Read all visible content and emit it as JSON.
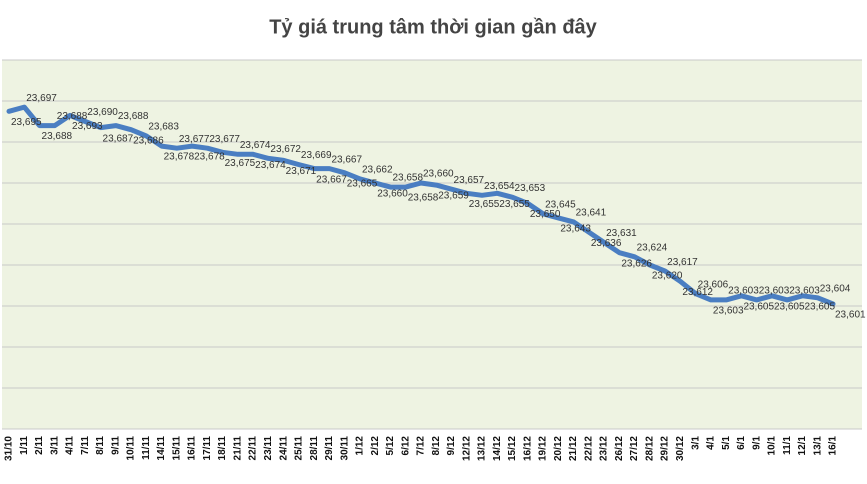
{
  "chart_data": {
    "type": "line",
    "title": "Tỷ giá trung tâm thời gian gần đây",
    "categories": [
      "31/10",
      "1/11",
      "2/11",
      "3/11",
      "4/11",
      "7/11",
      "8/11",
      "9/11",
      "10/11",
      "11/11",
      "14/11",
      "15/11",
      "16/11",
      "17/11",
      "18/11",
      "21/11",
      "22/11",
      "23/11",
      "24/11",
      "25/11",
      "28/11",
      "29/11",
      "30/11",
      "1/12",
      "2/12",
      "5/12",
      "6/12",
      "7/12",
      "8/12",
      "9/12",
      "12/12",
      "13/12",
      "14/12",
      "15/12",
      "16/12",
      "19/12",
      "20/12",
      "21/12",
      "22/12",
      "23/12",
      "26/12",
      "27/12",
      "28/12",
      "29/12",
      "30/12",
      "3/1",
      "4/1",
      "5/1",
      "6/1",
      "9/1",
      "10/1",
      "11/1",
      "12/1",
      "13/1",
      "16/1"
    ],
    "values": [
      23695,
      23697,
      23688,
      23688,
      23693,
      23690,
      23687,
      23688,
      23686,
      23683,
      23678,
      23677,
      23678,
      23677,
      23675,
      23674,
      23674,
      23672,
      23671,
      23669,
      23667,
      23667,
      23665,
      23662,
      23660,
      23658,
      23658,
      23660,
      23659,
      23657,
      23655,
      23654,
      23655,
      23653,
      23650,
      23645,
      23643,
      23641,
      23636,
      23631,
      23626,
      23624,
      23620,
      23617,
      23612,
      23606,
      23603,
      23603,
      23605,
      23603,
      23605,
      23603,
      23605,
      23604,
      23601
    ],
    "value_labels": [
      "23,695",
      "23,697",
      "23,688",
      "23,688",
      "23,693",
      "23,690",
      "23,687",
      "23,688",
      "23,686",
      "23,683",
      "23,678",
      "23,677",
      "23,678",
      "23,677",
      "23,675",
      "23,674",
      "23,674",
      "23,672",
      "23,671",
      "23,669",
      "23,667",
      "23,667",
      "23,665",
      "23,662",
      "23,660",
      "23,658",
      "23,658",
      "23,660",
      "23,659",
      "23,657",
      "23,655",
      "23,654",
      "23,655",
      "23,653",
      "23,650",
      "23,645",
      "23,643",
      "23,641",
      "23,636",
      "23,631",
      "23,626",
      "23,624",
      "23,620",
      "23,617",
      "23,612",
      "23,606",
      "23,603",
      "23,603",
      "23,605",
      "23,603",
      "23,605",
      "23,603",
      "23,605",
      "23,604",
      "23,601"
    ],
    "color": "#4a7ec2",
    "ylim": [
      23540,
      23720
    ],
    "yticks": [
      23540,
      23560,
      23580,
      23600,
      23620,
      23640,
      23660,
      23680,
      23700,
      23720
    ],
    "grid": true
  }
}
